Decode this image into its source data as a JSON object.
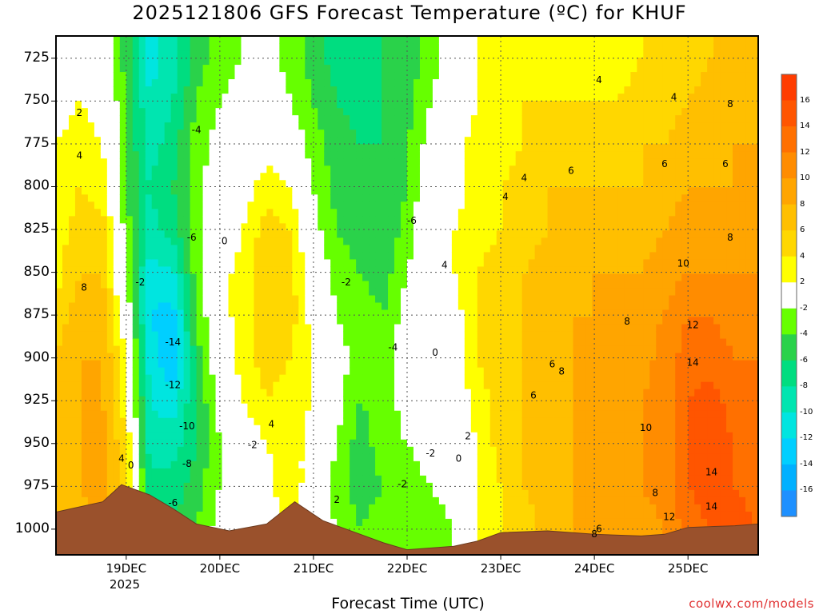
{
  "title": "2025121806 GFS Forecast Temperature (ºC) for KHUF",
  "footer": {
    "xlabel": "Forecast Time (UTC)",
    "credit": "coolwx.com/models"
  },
  "chart_data": {
    "type": "heatmap",
    "title": "2025121806 GFS Forecast Temperature (ºC) for KHUF",
    "xlabel": "Forecast Time (UTC)",
    "ylabel": "",
    "y_axis": {
      "reversed": true,
      "range": [
        1015,
        712
      ],
      "ticks": [
        725,
        750,
        775,
        800,
        825,
        850,
        875,
        900,
        925,
        950,
        975,
        1000
      ]
    },
    "x_axis": {
      "ticks": [
        {
          "label": "19DEC",
          "day": 19
        },
        {
          "label": "20DEC",
          "day": 20
        },
        {
          "label": "21DEC",
          "day": 21
        },
        {
          "label": "22DEC",
          "day": 22
        },
        {
          "label": "23DEC",
          "day": 23
        },
        {
          "label": "24DEC",
          "day": 24
        },
        {
          "label": "25DEC",
          "day": 25
        }
      ],
      "year_label": "2025",
      "range_days": [
        18.25,
        25.75
      ]
    },
    "grid": true,
    "colorbar": {
      "levels": [
        -18,
        -16,
        -14,
        -12,
        -10,
        -8,
        -6,
        -4,
        -2,
        2,
        4,
        6,
        8,
        10,
        12,
        14,
        16,
        18
      ],
      "labels": [
        16,
        14,
        12,
        10,
        8,
        6,
        4,
        2,
        -2,
        -4,
        -6,
        -8,
        -10,
        -12,
        -14,
        -16
      ],
      "colors": [
        "#1e90ff",
        "#00b0ff",
        "#00cfff",
        "#00e5e0",
        "#00e5b0",
        "#00dd80",
        "#2ad24a",
        "#66ff00",
        "#ffffff",
        "#ffff00",
        "#ffd700",
        "#ffbf00",
        "#ffa500",
        "#ff8c00",
        "#ff7000",
        "#ff5500",
        "#ff3c00"
      ]
    },
    "columns": [
      {
        "day": 18.25,
        "temps": [
          1,
          1,
          2,
          2,
          3,
          3,
          5,
          6,
          6,
          7,
          7,
          7
        ]
      },
      {
        "day": 18.5,
        "temps": [
          1,
          2,
          3,
          4,
          5,
          6,
          7,
          8,
          8,
          8,
          8,
          7
        ]
      },
      {
        "day": 18.75,
        "temps": [
          0,
          1,
          2,
          3,
          5,
          6,
          7,
          8,
          8,
          9,
          9,
          8
        ]
      },
      {
        "day": 19.0,
        "temps": [
          -5,
          -4,
          -4,
          -4,
          -3,
          -2,
          0,
          2,
          3,
          4,
          4,
          3
        ]
      },
      {
        "day": 19.25,
        "temps": [
          -11,
          -10,
          -9,
          -8,
          -9,
          -11,
          -12,
          -11,
          -10,
          -9,
          -7,
          -6
        ]
      },
      {
        "day": 19.5,
        "temps": [
          -9,
          -8,
          -7,
          -6,
          -7,
          -10,
          -13,
          -14,
          -11,
          -9,
          -7,
          -6
        ]
      },
      {
        "day": 19.75,
        "temps": [
          -5,
          -4,
          -3,
          -3,
          -3,
          -3,
          -4,
          -5,
          -6,
          -6,
          -5,
          -4
        ]
      },
      {
        "day": 20.0,
        "temps": [
          -3,
          -2,
          -1,
          0,
          0,
          1,
          1,
          0,
          -1,
          -2,
          -2,
          -1
        ]
      },
      {
        "day": 20.25,
        "temps": [
          -2,
          -1,
          0,
          1,
          2,
          3,
          3,
          3,
          2,
          0,
          -1,
          0
        ]
      },
      {
        "day": 20.5,
        "temps": [
          -1,
          0,
          1,
          3,
          5,
          6,
          6,
          5,
          4,
          2,
          1,
          0
        ]
      },
      {
        "day": 20.75,
        "temps": [
          -3,
          -2,
          0,
          2,
          4,
          5,
          5,
          4,
          3,
          3,
          4,
          3
        ]
      },
      {
        "day": 21.0,
        "temps": [
          -5,
          -4,
          -3,
          -2,
          -1,
          0,
          1,
          2,
          2,
          1,
          0,
          0
        ]
      },
      {
        "day": 21.25,
        "temps": [
          -7,
          -6,
          -5,
          -5,
          -4,
          -3,
          -2,
          -1,
          -1,
          -2,
          -3,
          -2
        ]
      },
      {
        "day": 21.5,
        "temps": [
          -7,
          -7,
          -6,
          -6,
          -5,
          -4,
          -3,
          -3,
          -4,
          -5,
          -5,
          -4
        ]
      },
      {
        "day": 21.75,
        "temps": [
          -6,
          -6,
          -6,
          -6,
          -6,
          -5,
          -4,
          -3,
          -3,
          -3,
          -4,
          -3
        ]
      },
      {
        "day": 22.0,
        "temps": [
          -5,
          -5,
          -4,
          -4,
          -3,
          -2,
          -1,
          0,
          -1,
          -2,
          -3,
          -3
        ]
      },
      {
        "day": 22.25,
        "temps": [
          -3,
          -2,
          -1,
          0,
          1,
          0,
          -1,
          0,
          0,
          -1,
          -2,
          -3
        ]
      },
      {
        "day": 22.5,
        "temps": [
          -1,
          0,
          1,
          1,
          2,
          2,
          1,
          1,
          0,
          0,
          -1,
          -2
        ]
      },
      {
        "day": 22.75,
        "temps": [
          2,
          2,
          3,
          3,
          3,
          4,
          4,
          4,
          3,
          2,
          2,
          2
        ]
      },
      {
        "day": 23.0,
        "temps": [
          3,
          3,
          3,
          4,
          4,
          5,
          5,
          5,
          5,
          5,
          4,
          4
        ]
      },
      {
        "day": 23.25,
        "temps": [
          3,
          4,
          4,
          5,
          5,
          6,
          6,
          6,
          6,
          6,
          6,
          5
        ]
      },
      {
        "day": 23.5,
        "temps": [
          3,
          4,
          5,
          6,
          6,
          7,
          7,
          7,
          7,
          7,
          7,
          7
        ]
      },
      {
        "day": 23.75,
        "temps": [
          3,
          4,
          5,
          6,
          7,
          7,
          8,
          8,
          8,
          8,
          8,
          8
        ]
      },
      {
        "day": 24.0,
        "temps": [
          3,
          4,
          5,
          6,
          7,
          8,
          8,
          8,
          8,
          9,
          9,
          8
        ]
      },
      {
        "day": 24.25,
        "temps": [
          3,
          4,
          5,
          6,
          7,
          8,
          8,
          9,
          9,
          9,
          9,
          8
        ]
      },
      {
        "day": 24.5,
        "temps": [
          4,
          5,
          6,
          6,
          7,
          8,
          9,
          9,
          10,
          10,
          10,
          9
        ]
      },
      {
        "day": 24.75,
        "temps": [
          4,
          5,
          6,
          7,
          8,
          9,
          10,
          11,
          11,
          11,
          11,
          10
        ]
      },
      {
        "day": 25.0,
        "temps": [
          5,
          6,
          7,
          8,
          9,
          10,
          12,
          13,
          14,
          14,
          14,
          13
        ]
      },
      {
        "day": 25.25,
        "temps": [
          6,
          7,
          7,
          8,
          9,
          10,
          12,
          13,
          15,
          15,
          15,
          14
        ]
      },
      {
        "day": 25.5,
        "temps": [
          6,
          7,
          8,
          8,
          9,
          10,
          11,
          12,
          13,
          14,
          14,
          15
        ]
      },
      {
        "day": 25.75,
        "temps": [
          7,
          7,
          8,
          8,
          9,
          10,
          11,
          12,
          13,
          13,
          13,
          14
        ]
      }
    ],
    "terrain": [
      {
        "day": 18.25,
        "pressure": 990
      },
      {
        "day": 18.75,
        "pressure": 984
      },
      {
        "day": 18.95,
        "pressure": 974
      },
      {
        "day": 19.25,
        "pressure": 980
      },
      {
        "day": 19.5,
        "pressure": 988
      },
      {
        "day": 19.75,
        "pressure": 997
      },
      {
        "day": 20.1,
        "pressure": 1001
      },
      {
        "day": 20.5,
        "pressure": 997
      },
      {
        "day": 20.8,
        "pressure": 984
      },
      {
        "day": 21.1,
        "pressure": 995
      },
      {
        "day": 21.5,
        "pressure": 1003
      },
      {
        "day": 21.75,
        "pressure": 1008
      },
      {
        "day": 22.0,
        "pressure": 1012
      },
      {
        "day": 22.5,
        "pressure": 1010
      },
      {
        "day": 22.75,
        "pressure": 1007
      },
      {
        "day": 23.0,
        "pressure": 1002
      },
      {
        "day": 23.5,
        "pressure": 1001
      },
      {
        "day": 24.0,
        "pressure": 1003
      },
      {
        "day": 24.5,
        "pressure": 1004
      },
      {
        "day": 24.75,
        "pressure": 1003
      },
      {
        "day": 25.0,
        "pressure": 999
      },
      {
        "day": 25.5,
        "pressure": 998
      },
      {
        "day": 25.75,
        "pressure": 997
      }
    ],
    "contour_labels": [
      {
        "text": "2",
        "day": 18.5,
        "pressure": 757
      },
      {
        "text": "4",
        "day": 18.5,
        "pressure": 782
      },
      {
        "text": "8",
        "day": 18.55,
        "pressure": 859
      },
      {
        "text": "4",
        "day": 18.95,
        "pressure": 959
      },
      {
        "text": "0",
        "day": 19.05,
        "pressure": 963
      },
      {
        "text": "-2",
        "day": 19.15,
        "pressure": 856
      },
      {
        "text": "-4",
        "day": 19.75,
        "pressure": 767
      },
      {
        "text": "-6",
        "day": 19.7,
        "pressure": 830
      },
      {
        "text": "0",
        "day": 20.05,
        "pressure": 832
      },
      {
        "text": "-14",
        "day": 19.5,
        "pressure": 891
      },
      {
        "text": "-12",
        "day": 19.5,
        "pressure": 916
      },
      {
        "text": "-10",
        "day": 19.65,
        "pressure": 940
      },
      {
        "text": "-8",
        "day": 19.65,
        "pressure": 962
      },
      {
        "text": "-6",
        "day": 19.5,
        "pressure": 985
      },
      {
        "text": "4",
        "day": 20.55,
        "pressure": 939
      },
      {
        "text": "-2",
        "day": 20.35,
        "pressure": 951
      },
      {
        "text": "2",
        "day": 21.25,
        "pressure": 983
      },
      {
        "text": "-2",
        "day": 21.35,
        "pressure": 856
      },
      {
        "text": "-6",
        "day": 22.05,
        "pressure": 820
      },
      {
        "text": "-4",
        "day": 21.85,
        "pressure": 894
      },
      {
        "text": "0",
        "day": 22.3,
        "pressure": 897
      },
      {
        "text": "-2",
        "day": 22.25,
        "pressure": 956
      },
      {
        "text": "-2",
        "day": 21.95,
        "pressure": 974
      },
      {
        "text": "0",
        "day": 22.55,
        "pressure": 959
      },
      {
        "text": "2",
        "day": 22.65,
        "pressure": 946
      },
      {
        "text": "4",
        "day": 22.4,
        "pressure": 846
      },
      {
        "text": "4",
        "day": 23.05,
        "pressure": 806
      },
      {
        "text": "4",
        "day": 23.25,
        "pressure": 795
      },
      {
        "text": "4",
        "day": 24.05,
        "pressure": 738
      },
      {
        "text": "4",
        "day": 24.85,
        "pressure": 748
      },
      {
        "text": "6",
        "day": 23.75,
        "pressure": 791
      },
      {
        "text": "6",
        "day": 24.75,
        "pressure": 787
      },
      {
        "text": "6",
        "day": 25.4,
        "pressure": 787
      },
      {
        "text": "8",
        "day": 25.45,
        "pressure": 752
      },
      {
        "text": "8",
        "day": 25.45,
        "pressure": 830
      },
      {
        "text": "10",
        "day": 24.95,
        "pressure": 845
      },
      {
        "text": "12",
        "day": 25.05,
        "pressure": 881
      },
      {
        "text": "14",
        "day": 25.05,
        "pressure": 903
      },
      {
        "text": "14",
        "day": 25.25,
        "pressure": 967
      },
      {
        "text": "14",
        "day": 25.25,
        "pressure": 987
      },
      {
        "text": "8",
        "day": 24.35,
        "pressure": 879
      },
      {
        "text": "6",
        "day": 23.55,
        "pressure": 904
      },
      {
        "text": "8",
        "day": 23.65,
        "pressure": 908
      },
      {
        "text": "6",
        "day": 23.35,
        "pressure": 922
      },
      {
        "text": "10",
        "day": 24.55,
        "pressure": 941
      },
      {
        "text": "8",
        "day": 24.65,
        "pressure": 979
      },
      {
        "text": "12",
        "day": 24.8,
        "pressure": 993
      },
      {
        "text": "8",
        "day": 24.0,
        "pressure": 1003
      },
      {
        "text": "6",
        "day": 24.05,
        "pressure": 1000
      }
    ]
  }
}
